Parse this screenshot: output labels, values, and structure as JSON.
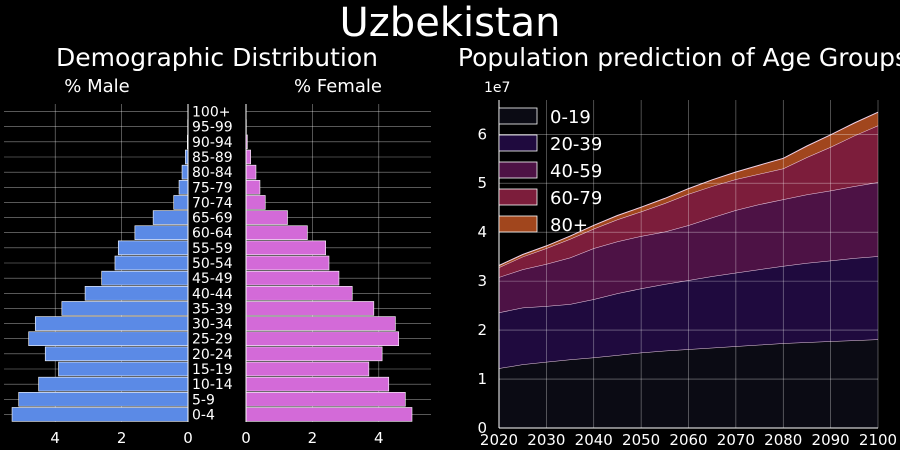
{
  "title": "Uzbekistan",
  "colors": {
    "background": "#000000",
    "male_bar": "#5b8ae6",
    "female_bar": "#d36ad8",
    "grid": "#ffffff",
    "area": [
      "#0b0b14",
      "#1f0a3e",
      "#4d1245",
      "#7c1d3b",
      "#a1461d"
    ],
    "area_line": "#f0d2e8"
  },
  "chart_data": [
    {
      "type": "bar",
      "orientation": "horizontal",
      "title": "Demographic Distribution",
      "categories": [
        "0-4",
        "5-9",
        "10-14",
        "15-19",
        "20-24",
        "25-29",
        "30-34",
        "35-39",
        "40-44",
        "45-49",
        "50-54",
        "55-59",
        "60-64",
        "65-69",
        "70-74",
        "75-79",
        "80-84",
        "85-89",
        "90-94",
        "95-99",
        "100+"
      ],
      "series": [
        {
          "name": "% Male",
          "values": [
            5.3,
            5.1,
            4.5,
            3.9,
            4.3,
            4.8,
            4.6,
            3.8,
            3.1,
            2.6,
            2.2,
            2.1,
            1.6,
            1.05,
            0.43,
            0.27,
            0.18,
            0.08,
            0.02,
            0.01,
            0.0
          ]
        },
        {
          "name": "% Female",
          "values": [
            5.0,
            4.8,
            4.3,
            3.7,
            4.1,
            4.6,
            4.5,
            3.85,
            3.2,
            2.8,
            2.5,
            2.4,
            1.85,
            1.25,
            0.58,
            0.42,
            0.3,
            0.14,
            0.04,
            0.01,
            0.0
          ]
        }
      ],
      "male_ticks": [
        "4",
        "2",
        "0"
      ],
      "female_ticks": [
        "0",
        "2",
        "4"
      ],
      "xlim": [
        0,
        5.6
      ],
      "grid": true
    },
    {
      "type": "area",
      "stacked": true,
      "title": "Population prediction of Age Groups",
      "y_offset_label": "1e7",
      "x": [
        2020,
        2025,
        2030,
        2035,
        2040,
        2045,
        2050,
        2055,
        2060,
        2065,
        2070,
        2075,
        2080,
        2085,
        2090,
        2095,
        2100
      ],
      "series": [
        {
          "name": "0-19",
          "values": [
            12200000,
            13000000,
            13500000,
            14000000,
            14400000,
            14900000,
            15400000,
            15800000,
            16100000,
            16400000,
            16700000,
            17000000,
            17300000,
            17500000,
            17700000,
            17900000,
            18100000
          ]
        },
        {
          "name": "20-39",
          "values": [
            11400000,
            11600000,
            11400000,
            11300000,
            11900000,
            12600000,
            13100000,
            13600000,
            14100000,
            14600000,
            15000000,
            15400000,
            15800000,
            16200000,
            16500000,
            16800000,
            17000000
          ]
        },
        {
          "name": "40-59",
          "values": [
            7200000,
            7800000,
            8600000,
            9500000,
            10400000,
            10600000,
            10700000,
            10700000,
            11200000,
            12000000,
            12800000,
            13300000,
            13600000,
            14000000,
            14300000,
            14700000,
            15100000
          ]
        },
        {
          "name": "60-79",
          "values": [
            2000000,
            2600000,
            3200000,
            3800000,
            4000000,
            4500000,
            5000000,
            5800000,
            6400000,
            6400000,
            6300000,
            6200000,
            6300000,
            7600000,
            8900000,
            10300000,
            11600000
          ]
        },
        {
          "name": "80+",
          "values": [
            400000,
            450000,
            500000,
            600000,
            700000,
            800000,
            900000,
            1000000,
            1100000,
            1300000,
            1500000,
            1800000,
            2100000,
            2300000,
            2500000,
            2600000,
            2700000
          ]
        }
      ],
      "ylim": [
        0,
        67000000
      ],
      "yticks": [
        0,
        1,
        2,
        3,
        4,
        5,
        6
      ],
      "xticks": [
        2020,
        2030,
        2040,
        2050,
        2060,
        2070,
        2080,
        2090,
        2100
      ],
      "legend": "upper-left",
      "grid": true
    }
  ]
}
